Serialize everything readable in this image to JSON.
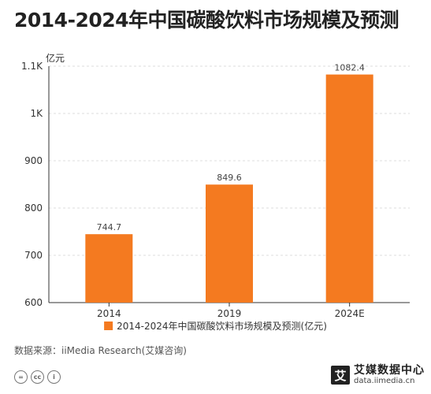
{
  "title": "2014-2024年中国碳酸饮料市场规模及预测",
  "source": "数据来源：iiMedia Research(艾媒咨询)",
  "license_icons": [
    "=",
    "cc",
    "i"
  ],
  "brand": {
    "mark": "艾",
    "name": "艾媒数据中心",
    "url": "data.iimedia.cn"
  },
  "colors": {
    "bar": "#f47a20",
    "axis": "#333333",
    "grid": "#dddddd"
  },
  "chart_data": {
    "type": "bar",
    "categories": [
      "2014",
      "2019",
      "2024E"
    ],
    "series": [
      {
        "name": "2014-2024年中国碳酸饮料市场规模及预测(亿元)",
        "values": [
          744.7,
          849.6,
          1082.4
        ]
      }
    ],
    "data_labels": [
      "744.7",
      "849.6",
      "1082.4"
    ],
    "ylabel": "亿元",
    "ylim": [
      600,
      1100
    ],
    "yticks": [
      600,
      700,
      800,
      900,
      1000,
      1100
    ],
    "ytick_labels": [
      "600",
      "700",
      "800",
      "900",
      "1K",
      "1.1K"
    ],
    "grid": true,
    "legend": "bottom"
  }
}
